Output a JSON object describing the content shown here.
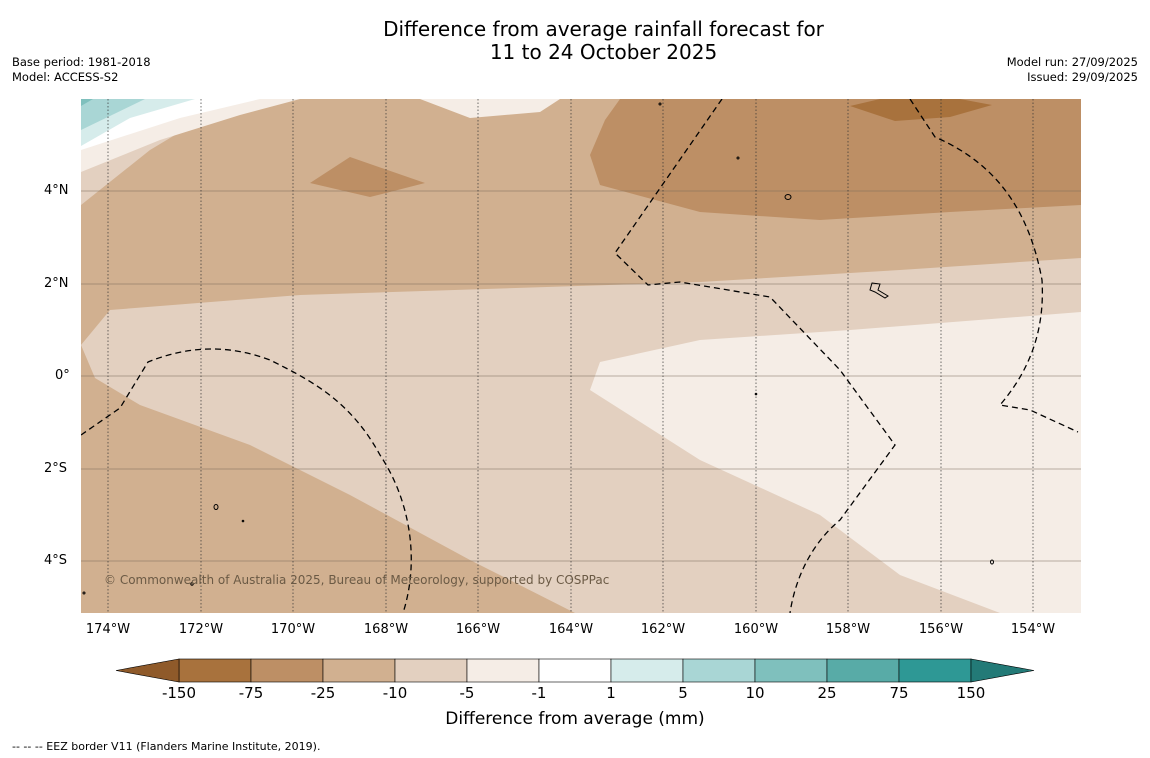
{
  "title": {
    "line1": "Difference from average rainfall forecast for",
    "line2": "11 to 24 October 2025"
  },
  "meta": {
    "base_period": "Base period: 1981-2018",
    "model": "Model: ACCESS-S2",
    "model_run": "Model run: 27/09/2025",
    "issued": "Issued: 29/09/2025"
  },
  "lat_labels": [
    "4°N",
    "2°N",
    "0°",
    "2°S",
    "4°S"
  ],
  "lon_labels": [
    "174°W",
    "172°W",
    "170°W",
    "168°W",
    "166°W",
    "164°W",
    "162°W",
    "160°W",
    "158°W",
    "156°W",
    "154°W"
  ],
  "copyright": "© Commonwealth of Australia 2025, Bureau of Meteorology, supported by COSPPac",
  "colorbar": {
    "ticks": [
      "-150",
      "-75",
      "-25",
      "-10",
      "-5",
      "-1",
      "1",
      "5",
      "10",
      "25",
      "75",
      "150"
    ],
    "colors": [
      "#a8723d",
      "#bd8f65",
      "#d1b090",
      "#e3d0c0",
      "#f5ede6",
      "#ffffff",
      "#d6eceb",
      "#a9d6d5",
      "#7fc0bd",
      "#58aba7",
      "#2e9895"
    ],
    "under_color": "#8f5a2a",
    "over_color": "#237a77",
    "label": "Difference from average (mm)"
  },
  "footer": "--  --  -- EEZ border V11 (Flanders Marine Institute, 2019)."
}
